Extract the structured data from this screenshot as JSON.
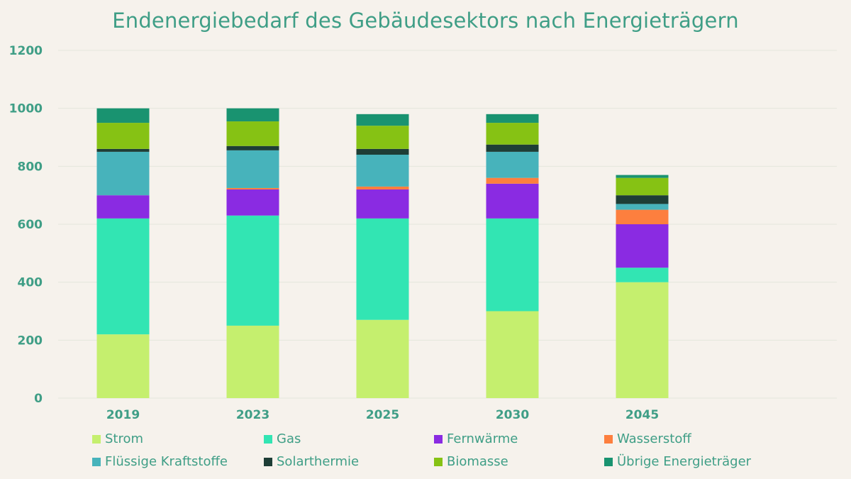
{
  "chart_data": {
    "type": "bar",
    "stacked": true,
    "title": "Endenergiebedarf des Gebäudesektors nach Energieträgern",
    "xlabel": "",
    "ylabel": "",
    "ylim": [
      0,
      1200
    ],
    "yticks": [
      "0",
      "200",
      "400",
      "600",
      "800",
      "1000",
      "1200"
    ],
    "grid": true,
    "legend_position": "bottom",
    "categories": [
      "2019",
      "2023",
      "2025",
      "2030",
      "2045"
    ],
    "series": [
      {
        "name": "Strom",
        "color": "#c5ef6e",
        "values": [
          220,
          250,
          270,
          300,
          400
        ]
      },
      {
        "name": "Gas",
        "color": "#32e5b3",
        "values": [
          400,
          380,
          350,
          320,
          50
        ]
      },
      {
        "name": "Fernwärme",
        "color": "#8a2be2",
        "values": [
          80,
          90,
          100,
          120,
          150
        ]
      },
      {
        "name": "Wasserstoff",
        "color": "#fd7f3e",
        "values": [
          0,
          5,
          10,
          20,
          50
        ]
      },
      {
        "name": "Flüssige Kraftstoffe",
        "color": "#47b3bb",
        "values": [
          150,
          130,
          110,
          90,
          20
        ]
      },
      {
        "name": "Solarthermie",
        "color": "#1e3e36",
        "values": [
          10,
          15,
          20,
          25,
          30
        ]
      },
      {
        "name": "Biomasse",
        "color": "#86c214",
        "values": [
          90,
          85,
          80,
          75,
          60
        ]
      },
      {
        "name": "Übrige Energieträger",
        "color": "#199370",
        "values": [
          50,
          45,
          40,
          30,
          10
        ]
      }
    ]
  }
}
